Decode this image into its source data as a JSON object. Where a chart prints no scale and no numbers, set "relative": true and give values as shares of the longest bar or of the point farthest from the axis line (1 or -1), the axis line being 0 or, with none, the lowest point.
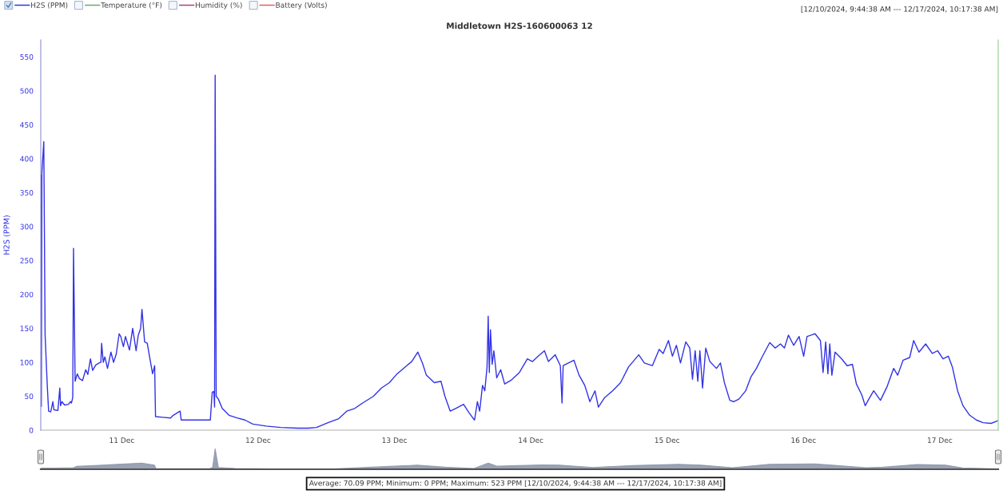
{
  "chart_data": [
    {
      "type": "line",
      "title": "Middletown H2S-160600063 12",
      "ylabel": "H2S (PPM)",
      "annotations": [
        "[12/10/2024, 9:44:38 AM --- 12/17/2024, 10:17:38 AM]",
        "Average: 70.09 PPM; Minimum: 0 PPM; Maximum: 523 PPM [12/10/2024, 9:44:38 AM --- 12/17/2024, 10:17:38 AM]"
      ],
      "legend": "top left",
      "xlim": [
        "2024-12-10T09:44",
        "2024-12-17T10:17"
      ],
      "xticks": [
        {
          "value": "2024-12-11",
          "label": "11 Dec"
        },
        {
          "value": "2024-12-12",
          "label": "12 Dec"
        },
        {
          "value": "2024-12-13",
          "label": "13 Dec"
        },
        {
          "value": "2024-12-14",
          "label": "14 Dec"
        },
        {
          "value": "2024-12-15",
          "label": "15 Dec"
        },
        {
          "value": "2024-12-16",
          "label": "16 Dec"
        },
        {
          "value": "2024-12-17",
          "label": "17 Dec"
        }
      ],
      "ylim": [
        0,
        575
      ],
      "yticks": [
        0,
        50,
        100,
        150,
        200,
        250,
        300,
        350,
        400,
        450,
        500,
        550
      ],
      "series": [
        {
          "name": "H2S (PPM)",
          "color": "#3232e6",
          "x": [
            "2024-12-10T09:44",
            "2024-12-10T09:50",
            "2024-12-10T09:56",
            "2024-12-10T10:16",
            "2024-12-10T10:30",
            "2024-12-10T10:53",
            "2024-12-10T11:07",
            "2024-12-10T11:29",
            "2024-12-10T11:52",
            "2024-12-10T12:03",
            "2024-12-10T12:45",
            "2024-12-10T13:05",
            "2024-12-10T13:13",
            "2024-12-10T13:27",
            "2024-12-10T13:55",
            "2024-12-10T14:37",
            "2024-12-10T14:57",
            "2024-12-10T15:08",
            "2024-12-10T15:22",
            "2024-12-10T15:30",
            "2024-12-10T15:47",
            "2024-12-10T16:10",
            "2024-12-10T16:32",
            "2024-12-10T17:05",
            "2024-12-10T17:39",
            "2024-12-10T18:01",
            "2024-12-10T18:29",
            "2024-12-10T18:52",
            "2024-12-10T19:25",
            "2024-12-10T19:59",
            "2024-12-10T20:19",
            "2024-12-10T20:27",
            "2024-12-10T20:44",
            "2024-12-10T21:01",
            "2024-12-10T21:29",
            "2024-12-10T22:05",
            "2024-12-10T22:33",
            "2024-12-10T23:01",
            "2024-12-10T23:32",
            "2024-12-10T23:49",
            "2024-12-11T00:17",
            "2024-12-11T00:39",
            "2024-12-11T01:21",
            "2024-12-11T01:55",
            "2024-12-11T02:31",
            "2024-12-11T02:54",
            "2024-12-11T03:19",
            "2024-12-11T03:33",
            "2024-12-11T04:01",
            "2024-12-11T04:29",
            "2024-12-11T04:51",
            "2024-12-11T05:25",
            "2024-12-11T05:47",
            "2024-12-11T05:56",
            "2024-12-11T07:11",
            "2024-12-11T08:35",
            "2024-12-11T09:04",
            "2024-12-11T10:16",
            "2024-12-11T10:27",
            "2024-12-11T15:35",
            "2024-12-11T15:55",
            "2024-12-11T16:12",
            "2024-12-11T16:20",
            "2024-12-11T16:26",
            "2024-12-11T16:37",
            "2024-12-11T16:59",
            "2024-12-11T17:41",
            "2024-12-11T18:52",
            "2024-12-11T20:16",
            "2024-12-11T21:40",
            "2024-12-11T23:04",
            "2024-12-12T01:24",
            "2024-12-12T03:58",
            "2024-12-12T07:00",
            "2024-12-12T08:52",
            "2024-12-12T10:16",
            "2024-12-12T12:18",
            "2024-12-12T14:12",
            "2024-12-12T15:36",
            "2024-12-12T17:00",
            "2024-12-12T18:24",
            "2024-12-12T20:18",
            "2024-12-12T21:42",
            "2024-12-12T23:06",
            "2024-12-13T00:28",
            "2024-12-13T01:52",
            "2024-12-13T03:02",
            "2024-12-13T04:07",
            "2024-12-13T04:55",
            "2024-12-13T05:37",
            "2024-12-13T07:01",
            "2024-12-13T08:11",
            "2024-12-13T08:53",
            "2024-12-13T09:49",
            "2024-12-13T10:46",
            "2024-12-13T12:10",
            "2024-12-13T13:06",
            "2024-12-13T13:48",
            "2024-12-13T14:06",
            "2024-12-13T14:36",
            "2024-12-13T15:00",
            "2024-12-13T15:30",
            "2024-12-13T15:54",
            "2024-12-13T16:18",
            "2024-12-13T16:30",
            "2024-12-13T16:42",
            "2024-12-13T16:54",
            "2024-12-13T17:12",
            "2024-12-13T17:30",
            "2024-12-13T18:00",
            "2024-12-13T18:42",
            "2024-12-13T19:24",
            "2024-12-13T20:36",
            "2024-12-13T22:00",
            "2024-12-13T23:24",
            "2024-12-14T00:18",
            "2024-12-14T01:18",
            "2024-12-14T02:24",
            "2024-12-14T03:06",
            "2024-12-14T04:18",
            "2024-12-14T05:12",
            "2024-12-14T05:30",
            "2024-12-14T05:42",
            "2024-12-14T06:36",
            "2024-12-14T07:36",
            "2024-12-14T08:30",
            "2024-12-14T09:30",
            "2024-12-14T10:24",
            "2024-12-14T11:18",
            "2024-12-14T11:54",
            "2024-12-14T13:00",
            "2024-12-14T14:24",
            "2024-12-14T15:48",
            "2024-12-14T17:12",
            "2024-12-14T19:00",
            "2024-12-14T20:00",
            "2024-12-14T21:24",
            "2024-12-14T22:36",
            "2024-12-14T23:18",
            "2024-12-15T00:14",
            "2024-12-15T00:56",
            "2024-12-15T01:38",
            "2024-12-15T02:21",
            "2024-12-15T03:17",
            "2024-12-15T03:59",
            "2024-12-15T04:28",
            "2024-12-15T04:56",
            "2024-12-15T05:24",
            "2024-12-15T05:46",
            "2024-12-15T06:14",
            "2024-12-15T06:48",
            "2024-12-15T07:31",
            "2024-12-15T08:41",
            "2024-12-15T09:23",
            "2024-12-15T10:05",
            "2024-12-15T11:02",
            "2024-12-15T11:44",
            "2024-12-15T12:40",
            "2024-12-15T13:50",
            "2024-12-15T14:47",
            "2024-12-15T15:43",
            "2024-12-15T16:40",
            "2024-12-15T18:04",
            "2024-12-15T19:01",
            "2024-12-15T19:57",
            "2024-12-15T20:39",
            "2024-12-15T21:21",
            "2024-12-15T22:17",
            "2024-12-15T23:14",
            "2024-12-16T00:02",
            "2024-12-16T00:38",
            "2024-12-16T02:03",
            "2024-12-16T02:59",
            "2024-12-16T03:27",
            "2024-12-16T03:55",
            "2024-12-16T04:18",
            "2024-12-16T04:38",
            "2024-12-16T05:00",
            "2024-12-16T05:34",
            "2024-12-16T06:44",
            "2024-12-16T07:41",
            "2024-12-16T08:37",
            "2024-12-16T09:19",
            "2024-12-16T10:16",
            "2024-12-16T10:52",
            "2024-12-16T11:40",
            "2024-12-16T12:22",
            "2024-12-16T13:33",
            "2024-12-16T14:43",
            "2024-12-16T15:53",
            "2024-12-16T16:35",
            "2024-12-16T17:32",
            "2024-12-16T18:42",
            "2024-12-16T19:24",
            "2024-12-16T20:20",
            "2024-12-16T21:31",
            "2024-12-16T22:41",
            "2024-12-16T23:37",
            "2024-12-17T00:34",
            "2024-12-17T01:30",
            "2024-12-17T02:13",
            "2024-12-17T03:08",
            "2024-12-17T04:05",
            "2024-12-17T05:16",
            "2024-12-17T06:26",
            "2024-12-17T07:37",
            "2024-12-17T09:01",
            "2024-12-17T10:17"
          ],
          "values": [
            376,
            35,
            380,
            425,
            140,
            65,
            28,
            27,
            42,
            30,
            29,
            62,
            36,
            42,
            37,
            38,
            42,
            40,
            48,
            268,
            72,
            83,
            76,
            73,
            89,
            82,
            105,
            88,
            96,
            99,
            100,
            128,
            100,
            108,
            91,
            115,
            100,
            112,
            142,
            138,
            123,
            138,
            118,
            150,
            117,
            140,
            150,
            178,
            130,
            128,
            110,
            83,
            95,
            20,
            19,
            18,
            22,
            28,
            15,
            15,
            56,
            57,
            34,
            523,
            50,
            46,
            32,
            22,
            18,
            15,
            9,
            6,
            4,
            3,
            3,
            4,
            11,
            17,
            28,
            32,
            40,
            50,
            62,
            70,
            83,
            93,
            101,
            115,
            99,
            81,
            70,
            72,
            50,
            28,
            32,
            38,
            26,
            18,
            15,
            42,
            28,
            66,
            58,
            93,
            168,
            85,
            148,
            97,
            117,
            77,
            89,
            68,
            74,
            85,
            105,
            101,
            109,
            117,
            101,
            111,
            95,
            40,
            95,
            99,
            103,
            81,
            66,
            42,
            58,
            34,
            48,
            58,
            70,
            93,
            111,
            99,
            95,
            119,
            113,
            132,
            109,
            125,
            99,
            130,
            121,
            75,
            117,
            72,
            117,
            62,
            121,
            101,
            91,
            99,
            70,
            44,
            42,
            46,
            58,
            79,
            91,
            107,
            129,
            121,
            127,
            121,
            140,
            125,
            138,
            109,
            138,
            142,
            132,
            85,
            130,
            83,
            127,
            81,
            115,
            105,
            95,
            97,
            68,
            52,
            36,
            48,
            58,
            44,
            64,
            91,
            81,
            103,
            107,
            132,
            115,
            127,
            113,
            117,
            105,
            109,
            93,
            58,
            36,
            22,
            15,
            11,
            10,
            14
          ]
        },
        {
          "name": "Temperature (°F)",
          "color": "#6aaa6a"
        },
        {
          "name": "Humidity (%)",
          "color": "#b0407f"
        },
        {
          "name": "Battery (Volts)",
          "color": "#e06060"
        }
      ]
    },
    {
      "type": "area",
      "relative": true,
      "xlim": [
        "2024-12-10T09:44",
        "2024-12-17T10:17"
      ],
      "series": [
        {
          "color": "#8f98ac",
          "x": [
            "2024-12-10T09:44",
            "2024-12-10T12:00",
            "2024-12-10T15:30",
            "2024-12-10T16:00",
            "2024-12-10T20:00",
            "2024-12-11T00:00",
            "2024-12-11T03:30",
            "2024-12-11T05:45",
            "2024-12-11T06:00",
            "2024-12-11T15:30",
            "2024-12-11T16:00",
            "2024-12-11T16:26",
            "2024-12-11T17:00",
            "2024-12-11T20:00",
            "2024-12-12T06:00",
            "2024-12-12T14:00",
            "2024-12-12T20:00",
            "2024-12-13T04:00",
            "2024-12-13T09:00",
            "2024-12-13T14:00",
            "2024-12-13T16:30",
            "2024-12-13T18:00",
            "2024-12-14T02:00",
            "2024-12-14T05:00",
            "2024-12-14T11:00",
            "2024-12-14T18:00",
            "2024-12-15T02:00",
            "2024-12-15T06:00",
            "2024-12-15T11:30",
            "2024-12-15T18:00",
            "2024-12-16T02:00",
            "2024-12-16T05:00",
            "2024-12-16T11:00",
            "2024-12-16T14:00",
            "2024-12-16T20:00",
            "2024-12-17T01:00",
            "2024-12-17T04:00",
            "2024-12-17T10:17"
          ],
          "values": [
            0.06,
            0.06,
            0.08,
            0.14,
            0.19,
            0.25,
            0.3,
            0.2,
            0.04,
            0.03,
            0.1,
            1,
            0.09,
            0.04,
            0.01,
            0.03,
            0.1,
            0.2,
            0.1,
            0.04,
            0.3,
            0.15,
            0.21,
            0.2,
            0.09,
            0.18,
            0.24,
            0.2,
            0.08,
            0.24,
            0.26,
            0.2,
            0.08,
            0.1,
            0.23,
            0.2,
            0.07,
            0.02
          ]
        }
      ]
    }
  ]
}
